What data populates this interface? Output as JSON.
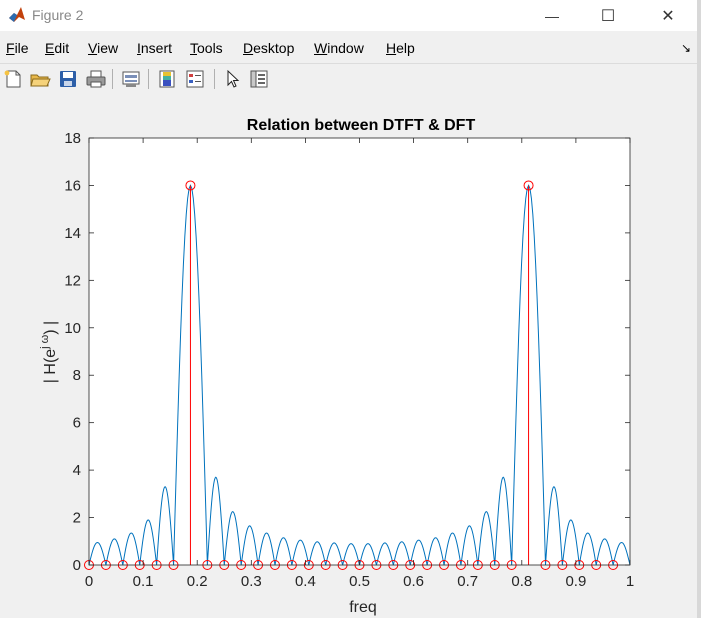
{
  "window": {
    "title": "Figure 2",
    "minimize_glyph": "—",
    "maximize_glyph": "☐",
    "close_glyph": "✕"
  },
  "menu": {
    "items": [
      {
        "label": "File",
        "underline": "F",
        "rest": "ile"
      },
      {
        "label": "Edit",
        "underline": "E",
        "rest": "dit"
      },
      {
        "label": "View",
        "underline": "V",
        "rest": "iew"
      },
      {
        "label": "Insert",
        "underline": "I",
        "rest": "nsert"
      },
      {
        "label": "Tools",
        "underline": "T",
        "rest": "ools"
      },
      {
        "label": "Desktop",
        "underline": "D",
        "rest": "esktop"
      },
      {
        "label": "Window",
        "underline": "W",
        "rest": "indow"
      },
      {
        "label": "Help",
        "underline": "H",
        "rest": "elp"
      }
    ],
    "dock_glyph": "↘"
  },
  "toolbar": {
    "icons": [
      "new-figure-icon",
      "open-file-icon",
      "save-icon",
      "print-icon",
      "link-plot-icon",
      "insert-colorbar-icon",
      "insert-legend-icon",
      "edit-plot-icon",
      "property-inspector-icon"
    ]
  },
  "colors": {
    "dtft_line": "#0072bd",
    "dft_stem": "#ff0000",
    "axes_bg": "#ffffff",
    "figure_bg": "#f0f0f0"
  },
  "chart_data": {
    "type": "line",
    "title": "Relation between DTFT & DFT",
    "xlabel": "freq",
    "ylabel": "| H(e",
    "ylabel_sup": "j ω",
    "ylabel_tail": ") |",
    "xlim": [
      0,
      1
    ],
    "ylim": [
      0,
      18
    ],
    "xticks": [
      0,
      0.1,
      0.2,
      0.3,
      0.4,
      0.5,
      0.6,
      0.7,
      0.8,
      0.9,
      1
    ],
    "xtick_labels": [
      "0",
      "0.1",
      "0.2",
      "0.3",
      "0.4",
      "0.5",
      "0.6",
      "0.7",
      "0.8",
      "0.9",
      "1"
    ],
    "yticks": [
      0,
      2,
      4,
      6,
      8,
      10,
      12,
      14,
      16,
      18
    ],
    "ytick_labels": [
      "0",
      "2",
      "4",
      "6",
      "8",
      "10",
      "12",
      "14",
      "16",
      "18"
    ],
    "grid": false,
    "series": [
      {
        "kind": "dtft",
        "x": [
          0,
          0.0156,
          0.0313,
          0.0469,
          0.0625,
          0.0781,
          0.0938,
          0.1094,
          0.125,
          0.1406,
          0.1563,
          0.1719,
          0.1875,
          0.2031,
          0.2188,
          0.2344,
          0.25,
          0.2656,
          0.2813,
          0.2969,
          0.3125,
          0.3281,
          0.3438,
          0.3594,
          0.375,
          0.3906,
          0.4063,
          0.4219,
          0.4375,
          0.4531,
          0.4688,
          0.4844,
          0.5,
          0.5156,
          0.5313,
          0.5469,
          0.5625,
          0.5781,
          0.5938,
          0.6094,
          0.625,
          0.6406,
          0.6563,
          0.6719,
          0.6875,
          0.7031,
          0.7188,
          0.7344,
          0.75,
          0.7656,
          0.7813,
          0.7969,
          0.8125,
          0.8281,
          0.8438,
          0.8594,
          0.875,
          0.8906,
          0.9063,
          0.9219,
          0.9375,
          0.9531,
          0.9688,
          0.9844,
          1
        ],
        "y": [
          0,
          0.95,
          0,
          1.1,
          0,
          1.35,
          0,
          1.9,
          0,
          3.3,
          0,
          10.2,
          16,
          10.2,
          0,
          3.7,
          0,
          2.25,
          0,
          1.65,
          0,
          1.35,
          0,
          1.15,
          0,
          1.05,
          0,
          0.98,
          0,
          0.93,
          0,
          0.9,
          0,
          0.9,
          0,
          0.93,
          0,
          0.98,
          0,
          1.05,
          0,
          1.15,
          0,
          1.35,
          0,
          1.65,
          0,
          2.25,
          0,
          3.7,
          0,
          10.2,
          16,
          10.2,
          0,
          3.3,
          0,
          1.9,
          0,
          1.35,
          0,
          1.1,
          0,
          0.95,
          0
        ]
      },
      {
        "kind": "dft",
        "x": [
          0,
          0.03125,
          0.0625,
          0.09375,
          0.125,
          0.15625,
          0.1875,
          0.21875,
          0.25,
          0.28125,
          0.3125,
          0.34375,
          0.375,
          0.40625,
          0.4375,
          0.46875,
          0.5,
          0.53125,
          0.5625,
          0.59375,
          0.625,
          0.65625,
          0.6875,
          0.71875,
          0.75,
          0.78125,
          0.8125,
          0.84375,
          0.875,
          0.90625,
          0.9375,
          0.96875
        ],
        "y": [
          0,
          0,
          0,
          0,
          0,
          0,
          16,
          0,
          0,
          0,
          0,
          0,
          0,
          0,
          0,
          0,
          0,
          0,
          0,
          0,
          0,
          0,
          0,
          0,
          0,
          0,
          16,
          0,
          0,
          0,
          0,
          0
        ]
      }
    ]
  }
}
